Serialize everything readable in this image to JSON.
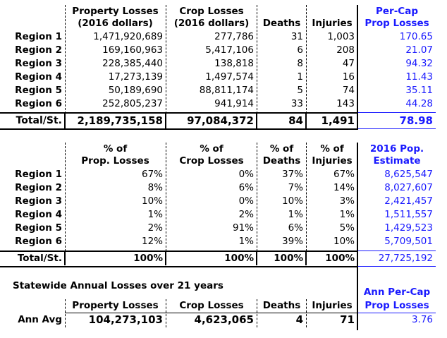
{
  "regions": [
    "Region 1",
    "Region 2",
    "Region 3",
    "Region 4",
    "Region 5",
    "Region 6"
  ],
  "table1": {
    "headers": {
      "property": [
        "Property Losses",
        "(2016 dollars)"
      ],
      "crop": [
        "Crop Losses",
        "(2016 dollars)"
      ],
      "deaths": "Deaths",
      "injuries": "Injuries",
      "percap": [
        "Per-Cap",
        "Prop Losses"
      ]
    },
    "rows": [
      {
        "property": "1,471,920,689",
        "crop": "277,786",
        "deaths": "31",
        "injuries": "1,003",
        "percap": "170.65"
      },
      {
        "property": "169,160,963",
        "crop": "5,417,106",
        "deaths": "6",
        "injuries": "208",
        "percap": "21.07"
      },
      {
        "property": "228,385,440",
        "crop": "138,818",
        "deaths": "8",
        "injuries": "47",
        "percap": "94.32"
      },
      {
        "property": "17,273,139",
        "crop": "1,497,574",
        "deaths": "1",
        "injuries": "16",
        "percap": "11.43"
      },
      {
        "property": "50,189,690",
        "crop": "88,811,174",
        "deaths": "5",
        "injuries": "74",
        "percap": "35.11"
      },
      {
        "property": "252,805,237",
        "crop": "941,914",
        "deaths": "33",
        "injuries": "143",
        "percap": "44.28"
      }
    ],
    "total": {
      "label": "Total/St.",
      "property": "2,189,735,158",
      "crop": "97,084,372",
      "deaths": "84",
      "injuries": "1,491",
      "percap": "78.98"
    }
  },
  "table2": {
    "headers": {
      "property": [
        "% of",
        "Prop. Losses"
      ],
      "crop": [
        "% of",
        "Crop Losses"
      ],
      "deaths": [
        "% of",
        "Deaths"
      ],
      "injuries": [
        "% of",
        "Injuries"
      ],
      "pop": [
        "2016 Pop.",
        "Estimate"
      ]
    },
    "rows": [
      {
        "property": "67%",
        "crop": "0%",
        "deaths": "37%",
        "injuries": "67%",
        "pop": "8,625,547"
      },
      {
        "property": "8%",
        "crop": "6%",
        "deaths": "7%",
        "injuries": "14%",
        "pop": "8,027,607"
      },
      {
        "property": "10%",
        "crop": "0%",
        "deaths": "10%",
        "injuries": "3%",
        "pop": "2,421,457"
      },
      {
        "property": "1%",
        "crop": "2%",
        "deaths": "1%",
        "injuries": "1%",
        "pop": "1,511,557"
      },
      {
        "property": "2%",
        "crop": "91%",
        "deaths": "6%",
        "injuries": "5%",
        "pop": "1,429,523"
      },
      {
        "property": "12%",
        "crop": "1%",
        "deaths": "39%",
        "injuries": "10%",
        "pop": "5,709,501"
      }
    ],
    "total": {
      "label": "Total/St.",
      "property": "100%",
      "crop": "100%",
      "deaths": "100%",
      "injuries": "100%",
      "pop": "27,725,192"
    }
  },
  "table3": {
    "title": "Statewide Annual Losses over 21 years",
    "headers": {
      "property": "Property Losses",
      "crop": "Crop Losses",
      "deaths": "Deaths",
      "injuries": "Injuries",
      "percap": [
        "Ann Per-Cap",
        "Prop Losses"
      ]
    },
    "row": {
      "label": "Ann Avg",
      "property": "104,273,103",
      "crop": "4,623,065",
      "deaths": "4",
      "injuries": "71",
      "percap": "3.76"
    }
  }
}
